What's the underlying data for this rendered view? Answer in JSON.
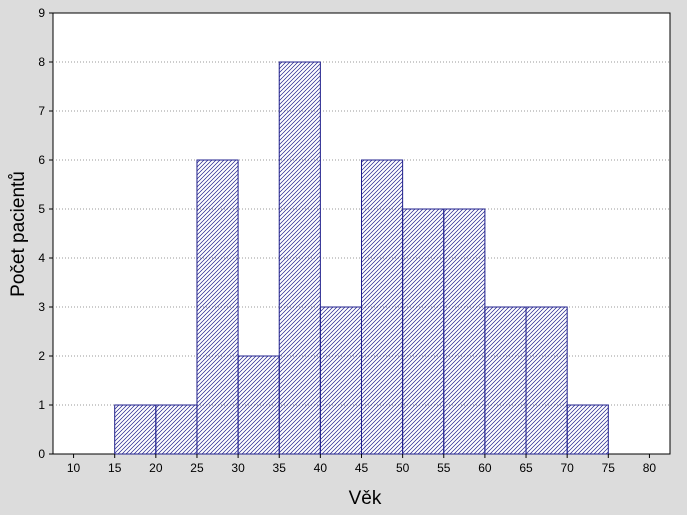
{
  "chart_data": {
    "type": "bar",
    "subtype": "histogram",
    "xlabel": "Věk",
    "ylabel": "Počet pacientů",
    "xlim": [
      7.5,
      82.5
    ],
    "ylim": [
      0,
      9
    ],
    "x_ticks": [
      10,
      15,
      20,
      25,
      30,
      35,
      40,
      45,
      50,
      55,
      60,
      65,
      70,
      75,
      80
    ],
    "y_ticks": [
      0,
      1,
      2,
      3,
      4,
      5,
      6,
      7,
      8,
      9
    ],
    "bins": [
      {
        "from": 15,
        "to": 20,
        "value": 1
      },
      {
        "from": 20,
        "to": 25,
        "value": 1
      },
      {
        "from": 25,
        "to": 30,
        "value": 6
      },
      {
        "from": 30,
        "to": 35,
        "value": 2
      },
      {
        "from": 35,
        "to": 40,
        "value": 8
      },
      {
        "from": 40,
        "to": 45,
        "value": 3
      },
      {
        "from": 45,
        "to": 50,
        "value": 6
      },
      {
        "from": 50,
        "to": 55,
        "value": 5
      },
      {
        "from": 55,
        "to": 60,
        "value": 5
      },
      {
        "from": 60,
        "to": 65,
        "value": 3
      },
      {
        "from": 65,
        "to": 70,
        "value": 3
      },
      {
        "from": 70,
        "to": 75,
        "value": 1
      }
    ],
    "grid": "horizontal dotted",
    "bar_color": "#1f1f8c",
    "plot_background": "#ffffff",
    "figure_background": "#dcdcdc"
  }
}
